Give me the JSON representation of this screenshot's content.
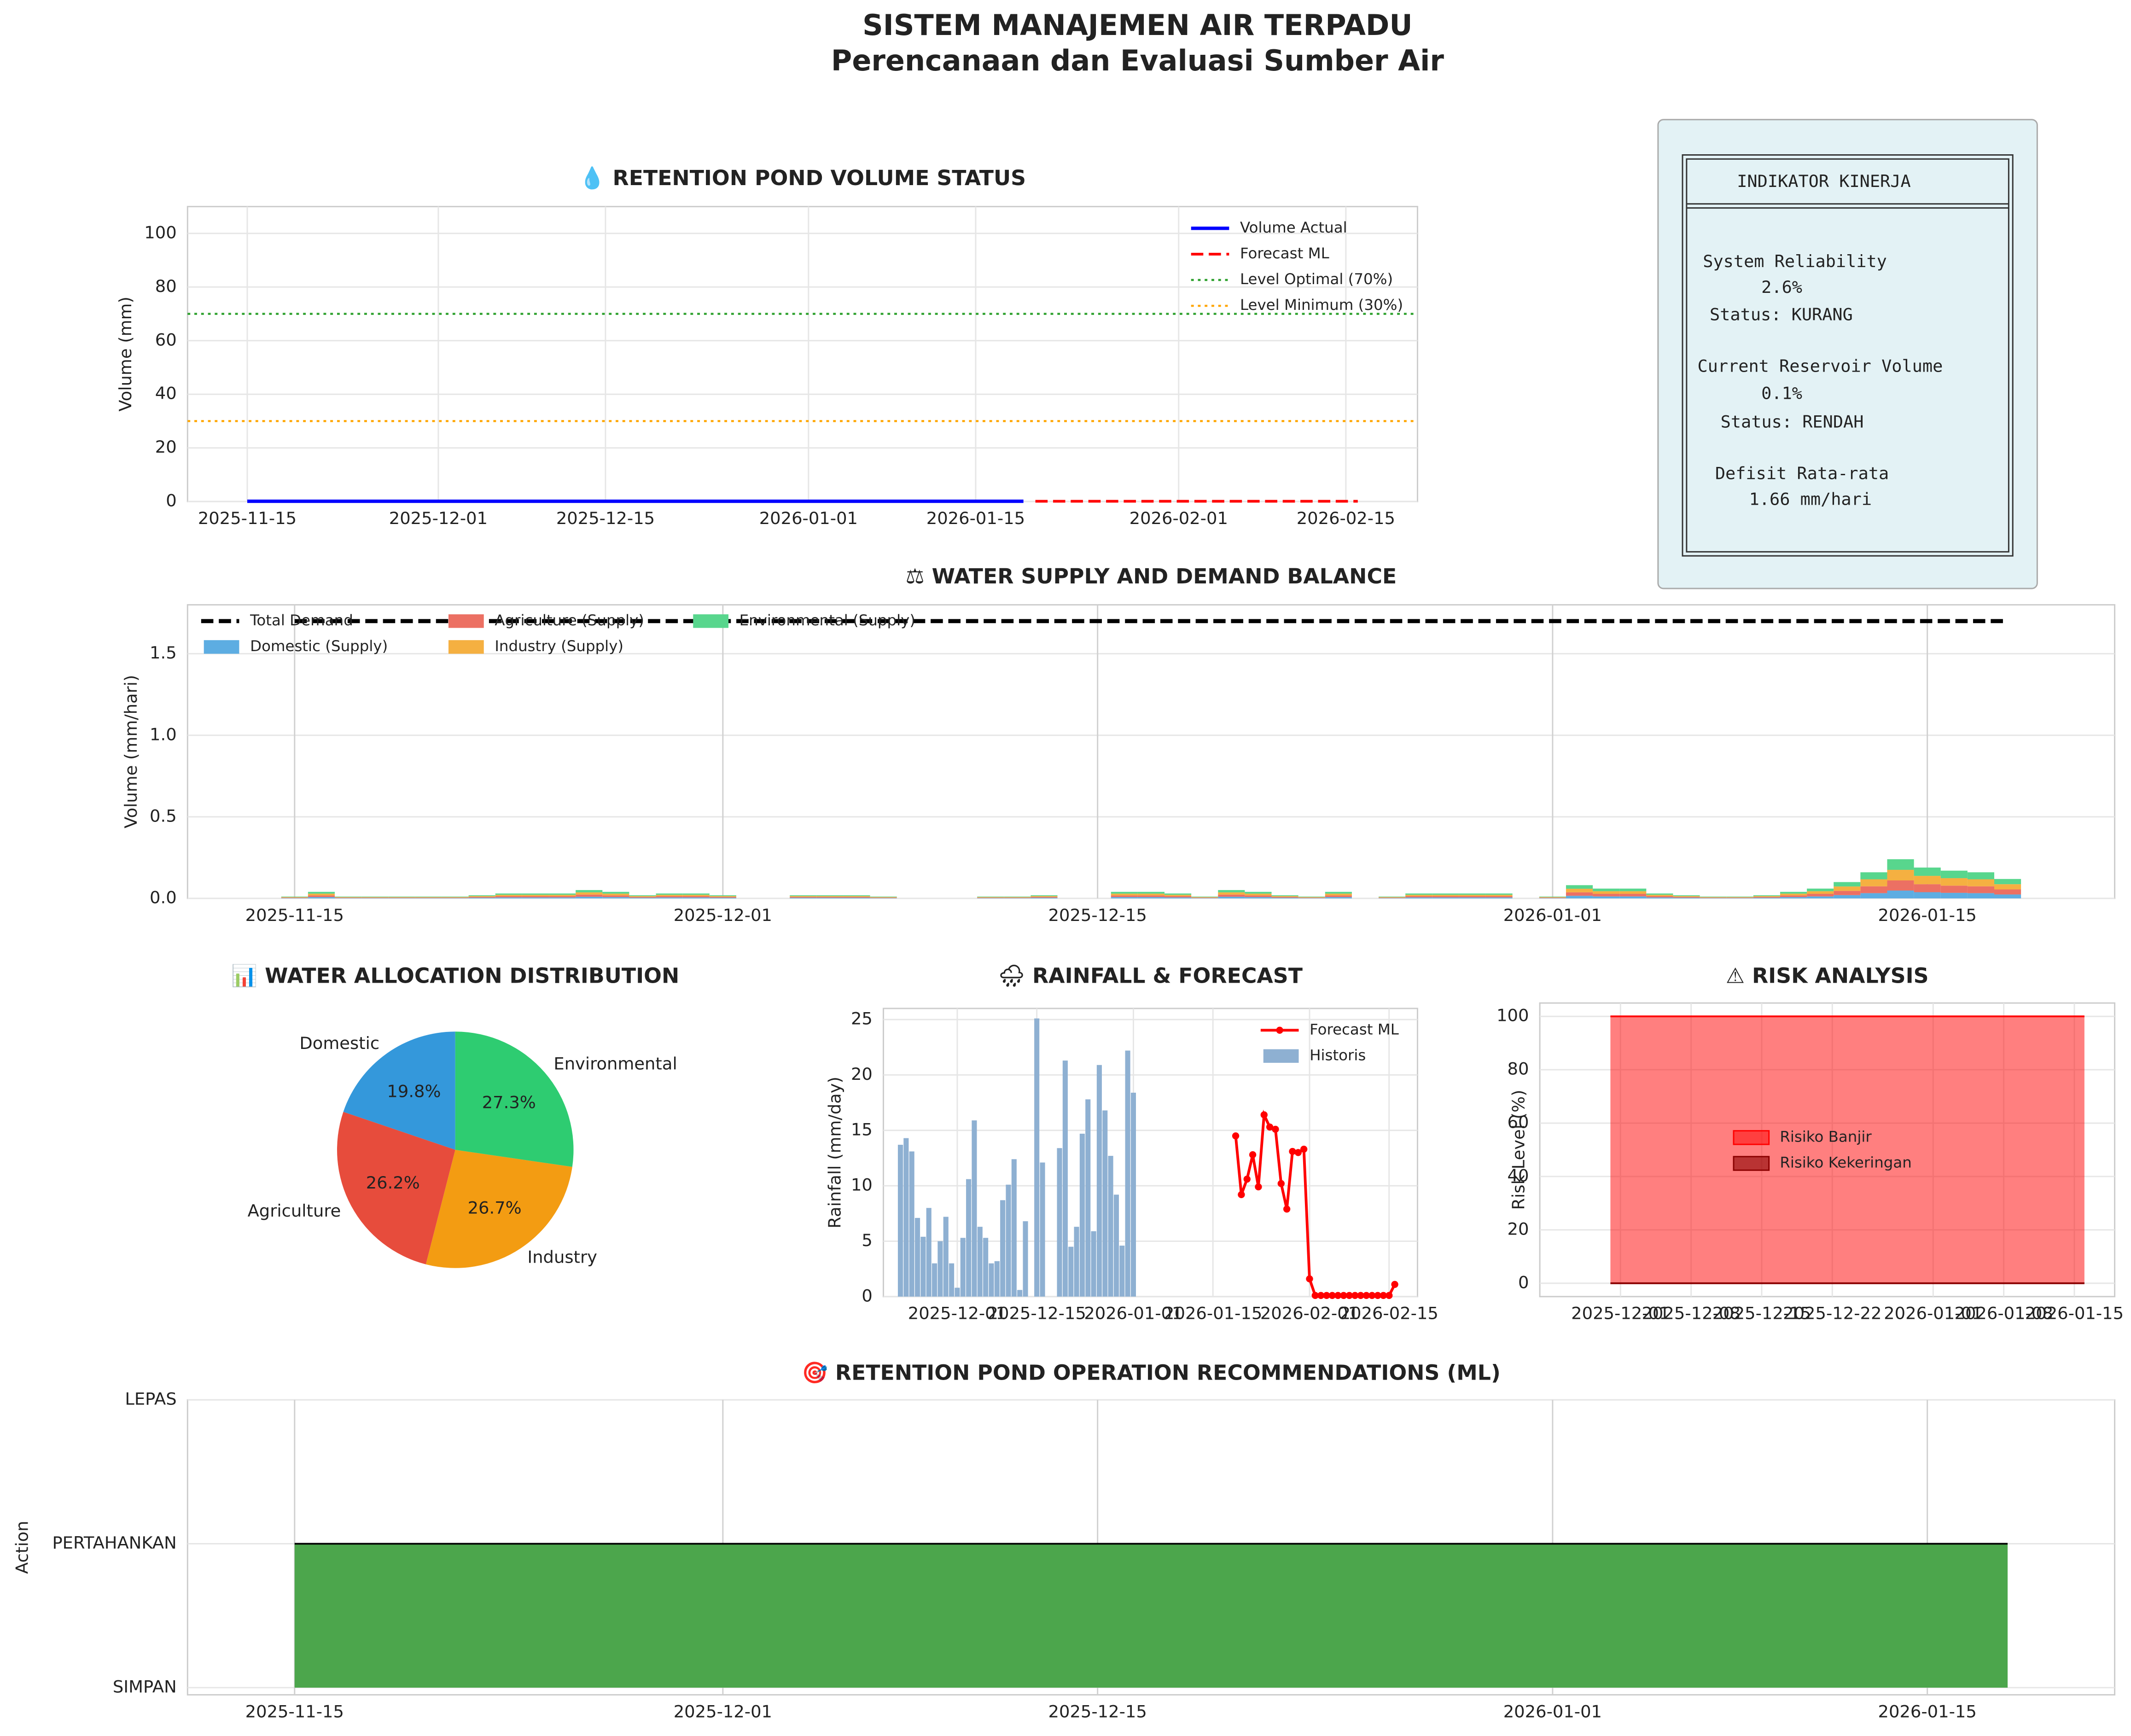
{
  "title": "SISTEM MANAJEMEN AIR TERPADU",
  "subtitle": "Perencanaan dan Evaluasi Sumber Air",
  "kpi_panel": {
    "title": "INDIKATOR KINERJA",
    "items": [
      {
        "label": "System Reliability",
        "value": "2.6%",
        "status": "Status: KURANG"
      },
      {
        "label": "Current Reservoir Volume",
        "value": "0.1%",
        "status": "Status: RENDAH"
      },
      {
        "label": "Defisit Rata-rata",
        "value": "1.66 mm/hari"
      }
    ]
  },
  "chart_data": [
    {
      "type": "line",
      "title": "💧 RETENTION POND VOLUME STATUS",
      "ylabel": "Volume (mm)",
      "xlim": [
        "2025-11-10",
        "2026-02-21"
      ],
      "ylim": [
        0,
        110
      ],
      "xticks": [
        "2025-11-15",
        "2025-12-01",
        "2025-12-15",
        "2026-01-01",
        "2026-01-15",
        "2026-02-01",
        "2026-02-15"
      ],
      "yticks": [
        0,
        20,
        40,
        60,
        80,
        100
      ],
      "grid": true,
      "legend": "upper right",
      "series": [
        {
          "name": "Volume Actual",
          "color": "#0000ff",
          "width": 2.5,
          "x": [
            "2025-11-15",
            "2026-01-19"
          ],
          "values": [
            0.1,
            0.1
          ]
        },
        {
          "name": "Forecast ML",
          "color": "#ff0000",
          "style": "dashed",
          "width": 2,
          "x": [
            "2026-01-20",
            "2026-02-16"
          ],
          "values": [
            0.1,
            0.1
          ]
        },
        {
          "name": "Level Optimal (70%)",
          "color": "#2ca02c",
          "style": "dotted",
          "width": 1.5,
          "x": [
            "2025-11-10",
            "2026-02-21"
          ],
          "values": [
            70,
            70
          ]
        },
        {
          "name": "Level Minimum (30%)",
          "color": "#ffa500",
          "style": "dotted",
          "width": 1.5,
          "x": [
            "2025-11-10",
            "2026-02-21"
          ],
          "values": [
            30,
            30
          ]
        }
      ]
    },
    {
      "type": "bar",
      "stacked": true,
      "bar_width": 1,
      "title": "⚖ WATER SUPPLY AND DEMAND BALANCE",
      "ylabel": "Volume (mm/hari)",
      "xlim": [
        "2025-11-11",
        "2026-01-22"
      ],
      "ylim": [
        0,
        1.8
      ],
      "xticks": [
        "2025-11-15",
        "2025-12-01",
        "2025-12-15",
        "2026-01-01",
        "2026-01-15"
      ],
      "yticks": [
        {
          "value": 0,
          "label": "0.0"
        },
        0.5,
        {
          "value": 1,
          "label": "1.0"
        },
        1.5
      ],
      "grid": true,
      "legend": "upper left",
      "legend_columns": 3,
      "x": [
        "2025-11-15",
        "2025-11-16",
        "2025-11-17",
        "2025-11-18",
        "2025-11-19",
        "2025-11-20",
        "2025-11-21",
        "2025-11-22",
        "2025-11-23",
        "2025-11-24",
        "2025-11-25",
        "2025-11-26",
        "2025-11-27",
        "2025-11-28",
        "2025-11-29",
        "2025-11-30",
        "2025-12-01",
        "2025-12-02",
        "2025-12-03",
        "2025-12-04",
        "2025-12-05",
        "2025-12-06",
        "2025-12-07",
        "2025-12-08",
        "2025-12-09",
        "2025-12-10",
        "2025-12-11",
        "2025-12-12",
        "2025-12-13",
        "2025-12-14",
        "2025-12-15",
        "2025-12-16",
        "2025-12-17",
        "2025-12-18",
        "2025-12-19",
        "2025-12-20",
        "2025-12-21",
        "2025-12-22",
        "2025-12-23",
        "2025-12-24",
        "2025-12-25",
        "2025-12-26",
        "2025-12-27",
        "2025-12-28",
        "2025-12-29",
        "2025-12-30",
        "2025-12-31",
        "2026-01-01",
        "2026-01-02",
        "2026-01-03",
        "2026-01-04",
        "2026-01-05",
        "2026-01-06",
        "2026-01-07",
        "2026-01-08",
        "2026-01-09",
        "2026-01-10",
        "2026-01-11",
        "2026-01-12",
        "2026-01-13",
        "2026-01-14",
        "2026-01-15",
        "2026-01-16",
        "2026-01-17",
        "2026-01-18"
      ],
      "series": [
        {
          "name": "Total Demand",
          "type": "line",
          "color": "#000000",
          "style": "dashed",
          "width": 3,
          "x": [
            "2025-11-15",
            "2026-01-18"
          ],
          "values": [
            1.7,
            1.7
          ]
        },
        {
          "name": "Domestic (Supply)",
          "color": "#5dade2",
          "values": [
            0.002,
            0.008,
            0.002,
            0.002,
            0.002,
            0.002,
            0.002,
            0.004,
            0.006,
            0.006,
            0.006,
            0.01,
            0.008,
            0.004,
            0.006,
            0.006,
            0.004,
            0,
            0,
            0.004,
            0.004,
            0.004,
            0.002,
            0,
            0,
            0,
            0.002,
            0.002,
            0.004,
            0,
            0,
            0.008,
            0.008,
            0.006,
            0.002,
            0.01,
            0.008,
            0.004,
            0.002,
            0.008,
            0,
            0.002,
            0.006,
            0.006,
            0.006,
            0.006,
            0,
            0.002,
            0.016,
            0.012,
            0.012,
            0.006,
            0.004,
            0.002,
            0.002,
            0.004,
            0.008,
            0.012,
            0.02,
            0.032,
            0.048,
            0.038,
            0.034,
            0.032,
            0.024
          ]
        },
        {
          "name": "Agriculture (Supply)",
          "color": "#ec7063",
          "values": [
            0.003,
            0.01,
            0.003,
            0.003,
            0.003,
            0.003,
            0.003,
            0.005,
            0.008,
            0.008,
            0.008,
            0.013,
            0.01,
            0.005,
            0.008,
            0.008,
            0.005,
            0,
            0,
            0.005,
            0.005,
            0.005,
            0.003,
            0,
            0,
            0,
            0.003,
            0.003,
            0.005,
            0,
            0,
            0.01,
            0.01,
            0.008,
            0.003,
            0.013,
            0.01,
            0.005,
            0.003,
            0.01,
            0,
            0.003,
            0.008,
            0.008,
            0.008,
            0.008,
            0,
            0.003,
            0.021,
            0.016,
            0.016,
            0.008,
            0.005,
            0.003,
            0.003,
            0.005,
            0.01,
            0.016,
            0.026,
            0.042,
            0.062,
            0.049,
            0.044,
            0.042,
            0.031
          ]
        },
        {
          "name": "Industry (Supply)",
          "color": "#f5b041",
          "values": [
            0.003,
            0.011,
            0.003,
            0.003,
            0.003,
            0.003,
            0.003,
            0.005,
            0.008,
            0.008,
            0.008,
            0.014,
            0.011,
            0.005,
            0.008,
            0.008,
            0.005,
            0,
            0,
            0.005,
            0.005,
            0.005,
            0.003,
            0,
            0,
            0,
            0.003,
            0.003,
            0.005,
            0,
            0,
            0.011,
            0.011,
            0.008,
            0.003,
            0.014,
            0.011,
            0.005,
            0.003,
            0.011,
            0,
            0.003,
            0.008,
            0.008,
            0.008,
            0.008,
            0,
            0.003,
            0.022,
            0.016,
            0.016,
            0.008,
            0.005,
            0.003,
            0.003,
            0.005,
            0.011,
            0.016,
            0.027,
            0.043,
            0.065,
            0.051,
            0.046,
            0.043,
            0.032
          ]
        },
        {
          "name": "Environmental (Supply)",
          "color": "#58d68d",
          "values": [
            0.003,
            0.011,
            0.003,
            0.003,
            0.003,
            0.003,
            0.003,
            0.005,
            0.008,
            0.008,
            0.008,
            0.014,
            0.011,
            0.005,
            0.008,
            0.008,
            0.005,
            0,
            0,
            0.005,
            0.005,
            0.005,
            0.003,
            0,
            0,
            0,
            0.003,
            0.003,
            0.005,
            0,
            0,
            0.011,
            0.011,
            0.008,
            0.003,
            0.014,
            0.011,
            0.005,
            0.003,
            0.011,
            0,
            0.003,
            0.008,
            0.008,
            0.008,
            0.008,
            0,
            0.003,
            0.022,
            0.016,
            0.016,
            0.008,
            0.005,
            0.003,
            0.003,
            0.005,
            0.011,
            0.016,
            0.027,
            0.043,
            0.065,
            0.051,
            0.046,
            0.043,
            0.032
          ]
        }
      ]
    },
    {
      "type": "pie",
      "title": "📊 WATER ALLOCATION DISTRIBUTION",
      "categories": [
        "Domestic",
        "Agriculture",
        "Industry",
        "Environmental"
      ],
      "values": [
        19.8,
        26.2,
        26.7,
        27.3
      ],
      "value_labels": [
        "19.8%",
        "26.2%",
        "26.7%",
        "27.3%"
      ],
      "colors": [
        "#3498db",
        "#e74c3c",
        "#f39c12",
        "#2ecc71"
      ]
    },
    {
      "type": "bar",
      "bar_width": 0.9,
      "title": "🌧 RAINFALL & FORECAST",
      "ylabel": "Rainfall (mm/day)",
      "xlim": [
        "2025-11-18",
        "2026-02-20"
      ],
      "ylim": [
        0,
        26
      ],
      "xticks": [
        "2025-12-01",
        "2025-12-15",
        "2026-01-01",
        "2026-01-15",
        "2026-02-01",
        "2026-02-15"
      ],
      "yticks": [
        0,
        5,
        10,
        15,
        20,
        25
      ],
      "grid": true,
      "legend": "upper right",
      "series": [
        {
          "name": "Forecast ML",
          "type": "line",
          "marker": true,
          "color": "#ff0000",
          "width": 2,
          "x": [
            "2026-01-19",
            "2026-01-20",
            "2026-01-21",
            "2026-01-22",
            "2026-01-23",
            "2026-01-24",
            "2026-01-25",
            "2026-01-26",
            "2026-01-27",
            "2026-01-28",
            "2026-01-29",
            "2026-01-30",
            "2026-01-31",
            "2026-02-01",
            "2026-02-02",
            "2026-02-03",
            "2026-02-04",
            "2026-02-05",
            "2026-02-06",
            "2026-02-07",
            "2026-02-08",
            "2026-02-09",
            "2026-02-10",
            "2026-02-11",
            "2026-02-12",
            "2026-02-13",
            "2026-02-14",
            "2026-02-15",
            "2026-02-16"
          ],
          "values": [
            14.5,
            9.2,
            10.6,
            12.8,
            9.9,
            16.4,
            15.3,
            15.1,
            10.2,
            7.9,
            13.1,
            13,
            13.3,
            1.6,
            0.1,
            0.1,
            0.1,
            0.1,
            0.1,
            0.1,
            0.1,
            0.1,
            0.1,
            0.1,
            0.1,
            0.1,
            0.1,
            0.1,
            1.1
          ]
        },
        {
          "name": "Historis",
          "color": "#8eb0d2",
          "x": [
            "2025-11-21",
            "2025-11-22",
            "2025-11-23",
            "2025-11-24",
            "2025-11-25",
            "2025-11-26",
            "2025-11-27",
            "2025-11-28",
            "2025-11-29",
            "2025-11-30",
            "2025-12-01",
            "2025-12-02",
            "2025-12-03",
            "2025-12-04",
            "2025-12-05",
            "2025-12-06",
            "2025-12-07",
            "2025-12-08",
            "2025-12-09",
            "2025-12-10",
            "2025-12-11",
            "2025-12-12",
            "2025-12-13",
            "2025-12-14",
            "2025-12-15",
            "2025-12-16",
            "2025-12-17",
            "2025-12-18",
            "2025-12-19",
            "2025-12-20",
            "2025-12-21",
            "2025-12-22",
            "2025-12-23",
            "2025-12-24",
            "2025-12-25",
            "2025-12-26",
            "2025-12-27",
            "2025-12-28",
            "2025-12-29",
            "2025-12-30",
            "2025-12-31",
            "2026-01-01"
          ],
          "values": [
            13.7,
            14.3,
            13.1,
            7.1,
            5.4,
            8,
            3,
            5,
            7.2,
            3,
            0.8,
            5.3,
            10.6,
            15.9,
            6.3,
            5.3,
            3,
            3.2,
            8.7,
            10.1,
            12.4,
            0.6,
            6.8,
            0,
            25.1,
            12.1,
            0,
            0,
            13.4,
            21.3,
            4.5,
            6.3,
            14.7,
            17.8,
            5.9,
            20.9,
            16.8,
            12.7,
            9.2,
            4.6,
            22.2,
            18.4
          ]
        }
      ]
    },
    {
      "type": "area",
      "title": "⚠ RISK ANALYSIS",
      "ylabel": "Risk Level (%)",
      "xlim": [
        "2025-11-23",
        "2026-01-19"
      ],
      "ylim": [
        -5,
        105
      ],
      "xticks": [
        "2025-12-01",
        "2025-12-08",
        "2025-12-15",
        "2025-12-22",
        "2026-01-01",
        "2026-01-08",
        "2026-01-15"
      ],
      "yticks": [
        0,
        20,
        40,
        60,
        80,
        100
      ],
      "grid": true,
      "legend": "center",
      "series": [
        {
          "name": "Risiko Banjir",
          "color": "#ff0000",
          "alpha": 0.5,
          "x": [
            "2025-11-30",
            "2026-01-16"
          ],
          "values": [
            100,
            100
          ]
        },
        {
          "name": "Risiko Kekeringan",
          "color": "#8b0000",
          "alpha": 0.6,
          "x": [
            "2025-11-30",
            "2026-01-16"
          ],
          "values": [
            0,
            0
          ]
        }
      ]
    },
    {
      "type": "area",
      "title": "🎯 RETENTION POND OPERATION RECOMMENDATIONS (ML)",
      "ylabel": "Action",
      "xlim": [
        "2025-11-11",
        "2026-01-22"
      ],
      "ylim": [
        -0.05,
        2
      ],
      "xticks": [
        "2025-11-15",
        "2025-12-01",
        "2025-12-15",
        "2026-01-01",
        "2026-01-15"
      ],
      "yticks": [
        {
          "value": 0,
          "label": "SIMPAN"
        },
        {
          "value": 1,
          "label": "PERTAHANKAN"
        },
        {
          "value": 2,
          "label": "LEPAS"
        }
      ],
      "grid": true,
      "series": [
        {
          "color": "#4ca64c",
          "line_color": "#000000",
          "x": [
            "2025-11-15",
            "2026-01-18"
          ],
          "values": [
            1,
            1
          ]
        }
      ]
    }
  ]
}
